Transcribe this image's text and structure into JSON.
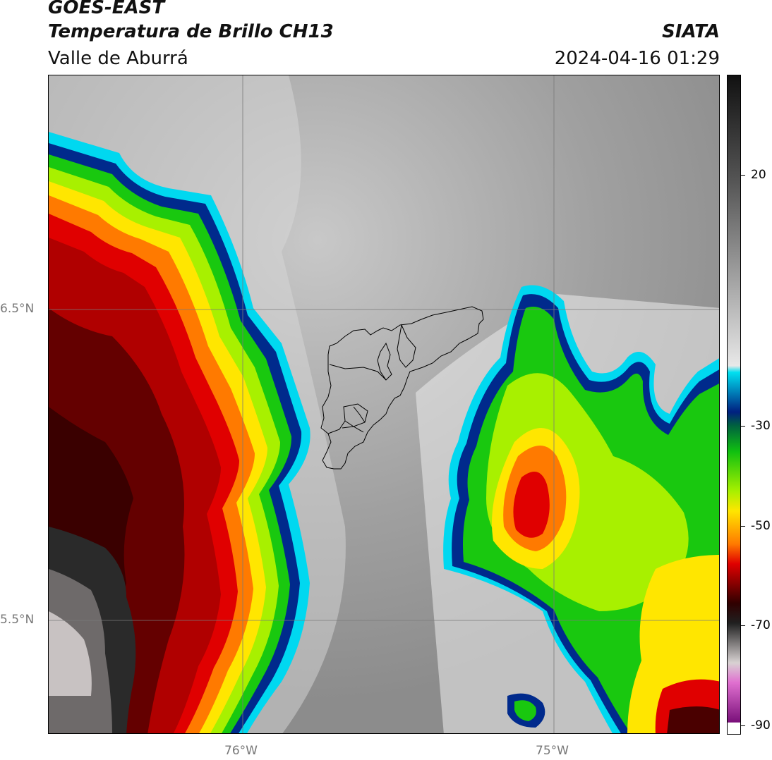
{
  "header": {
    "satellite": "GOES-EAST",
    "product": "Temperatura de Brillo CH13",
    "region": "Valle de Aburrá",
    "organization": "SIATA",
    "timestamp": "2024-04-16 01:29"
  },
  "map": {
    "lat_labels": [
      "6.5°N",
      "5.5°N"
    ],
    "lon_labels": [
      "76°W",
      "75°W"
    ]
  },
  "colorbar": {
    "tick_labels": [
      "20",
      "-30",
      "-50",
      "-70",
      "-90"
    ],
    "colors": {
      "warm_gray": "#9a9a9a",
      "cold_cyan": "#00d8f0",
      "cold_blue": "#002a8c",
      "cold_green": "#19c80f",
      "lime": "#a8f000",
      "yellow": "#ffe600",
      "orange": "#ff7a00",
      "red": "#e00000",
      "dark_red": "#4a0000",
      "coldest_gray": "#d8d2d2",
      "magenta": "#c850c0"
    }
  }
}
